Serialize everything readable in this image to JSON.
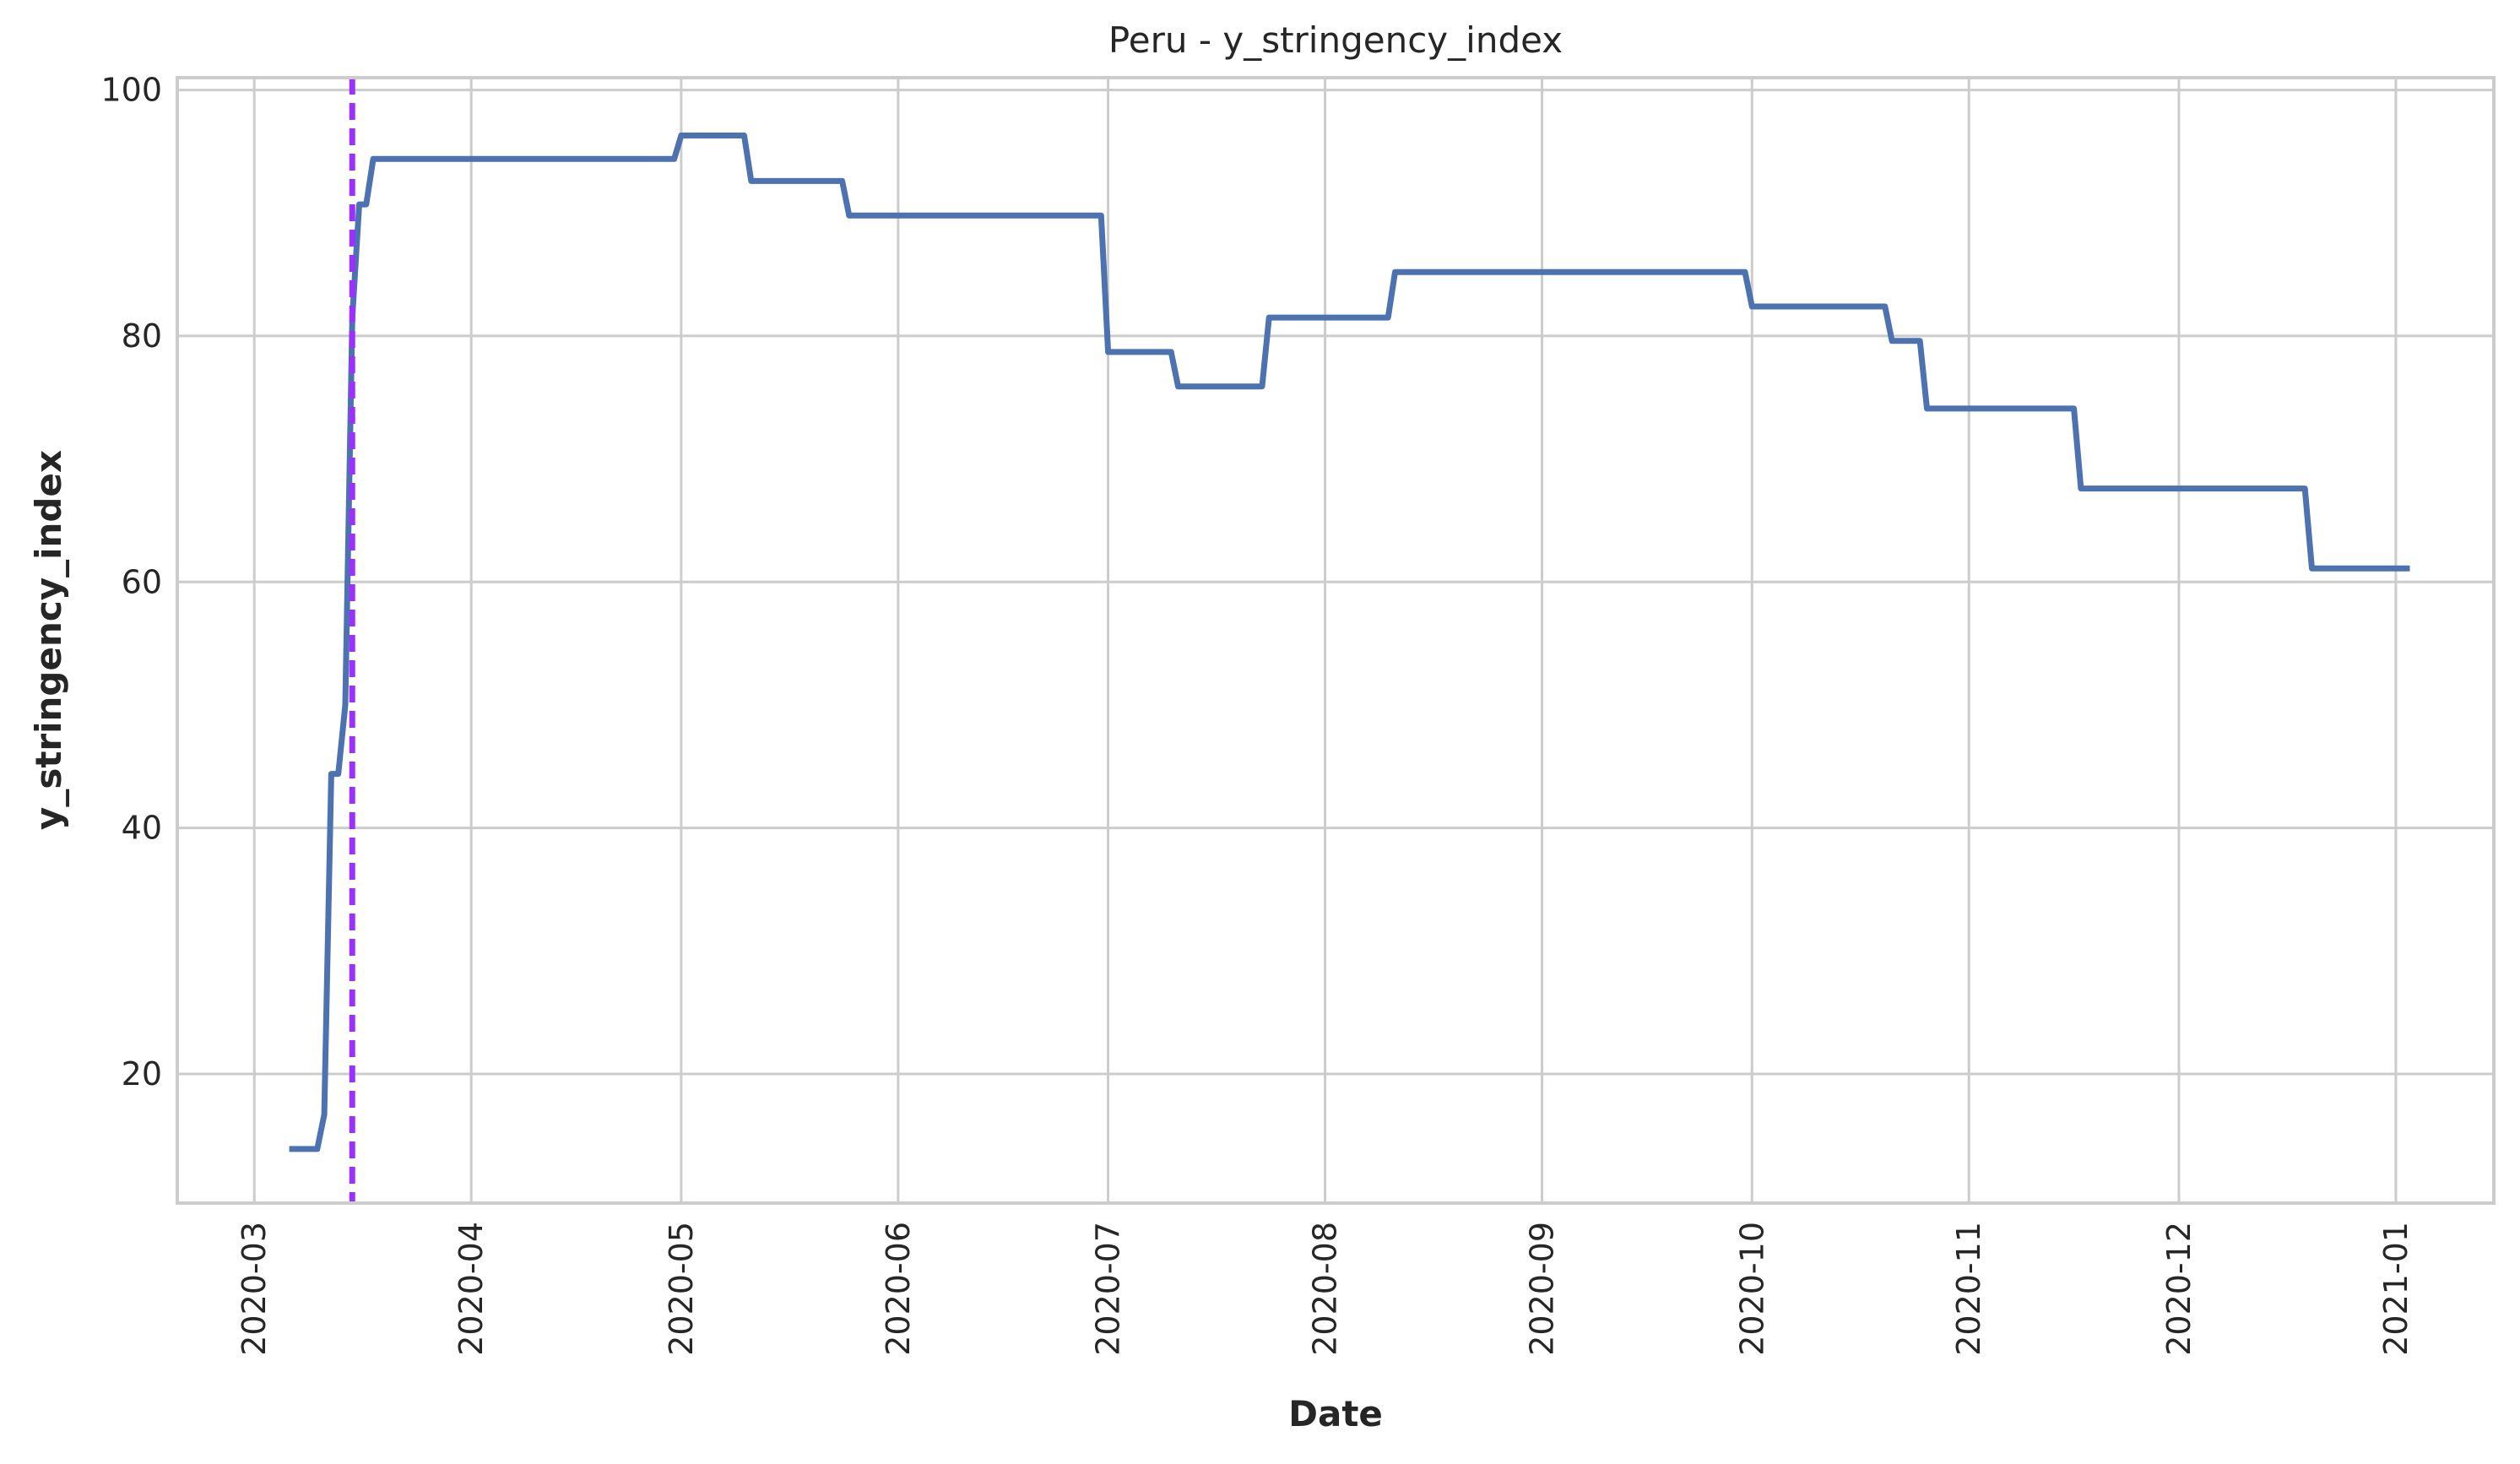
{
  "chart_data": {
    "type": "line",
    "title": "Peru - y_stringency_index",
    "xlabel": "Date",
    "ylabel": "y_stringency_index",
    "x_axis": "date",
    "xlim": [
      "2020-02-19",
      "2021-01-15"
    ],
    "ylim": [
      9.5,
      101
    ],
    "x_ticks": [
      "2020-03-01",
      "2020-04-01",
      "2020-05-01",
      "2020-06-01",
      "2020-07-01",
      "2020-08-01",
      "2020-09-01",
      "2020-10-01",
      "2020-11-01",
      "2020-12-01",
      "2021-01-01"
    ],
    "x_tick_labels": [
      "2020-03",
      "2020-04",
      "2020-05",
      "2020-06",
      "2020-07",
      "2020-08",
      "2020-09",
      "2020-10",
      "2020-11",
      "2020-12",
      "2021-01"
    ],
    "y_ticks": [
      20,
      40,
      60,
      80,
      100
    ],
    "y_tick_labels": [
      "20",
      "40",
      "60",
      "80",
      "100"
    ],
    "grid": true,
    "legend": "none",
    "vertical_marker": {
      "x": "2020-03-15",
      "style": "dashed",
      "color": "#9b30ff"
    },
    "series": [
      {
        "color": "#4c72b0",
        "points": [
          [
            "2020-03-06",
            13.9
          ],
          [
            "2020-03-10",
            13.9
          ],
          [
            "2020-03-11",
            16.7
          ],
          [
            "2020-03-12",
            44.4
          ],
          [
            "2020-03-13",
            44.4
          ],
          [
            "2020-03-14",
            50.0
          ],
          [
            "2020-03-15",
            81.5
          ],
          [
            "2020-03-16",
            90.7
          ],
          [
            "2020-03-17",
            90.7
          ],
          [
            "2020-03-18",
            94.4
          ],
          [
            "2020-04-30",
            94.4
          ],
          [
            "2020-05-01",
            96.3
          ],
          [
            "2020-05-10",
            96.3
          ],
          [
            "2020-05-11",
            92.6
          ],
          [
            "2020-05-24",
            92.6
          ],
          [
            "2020-05-25",
            89.8
          ],
          [
            "2020-06-30",
            89.8
          ],
          [
            "2020-07-01",
            78.7
          ],
          [
            "2020-07-10",
            78.7
          ],
          [
            "2020-07-11",
            75.9
          ],
          [
            "2020-07-23",
            75.9
          ],
          [
            "2020-07-24",
            81.5
          ],
          [
            "2020-08-10",
            81.5
          ],
          [
            "2020-08-11",
            85.2
          ],
          [
            "2020-09-30",
            85.2
          ],
          [
            "2020-10-01",
            82.4
          ],
          [
            "2020-10-20",
            82.4
          ],
          [
            "2020-10-21",
            79.6
          ],
          [
            "2020-10-25",
            79.6
          ],
          [
            "2020-10-26",
            74.1
          ],
          [
            "2020-11-16",
            74.1
          ],
          [
            "2020-11-17",
            67.6
          ],
          [
            "2020-12-19",
            67.6
          ],
          [
            "2020-12-20",
            61.1
          ],
          [
            "2021-01-03",
            61.1
          ]
        ]
      }
    ]
  }
}
